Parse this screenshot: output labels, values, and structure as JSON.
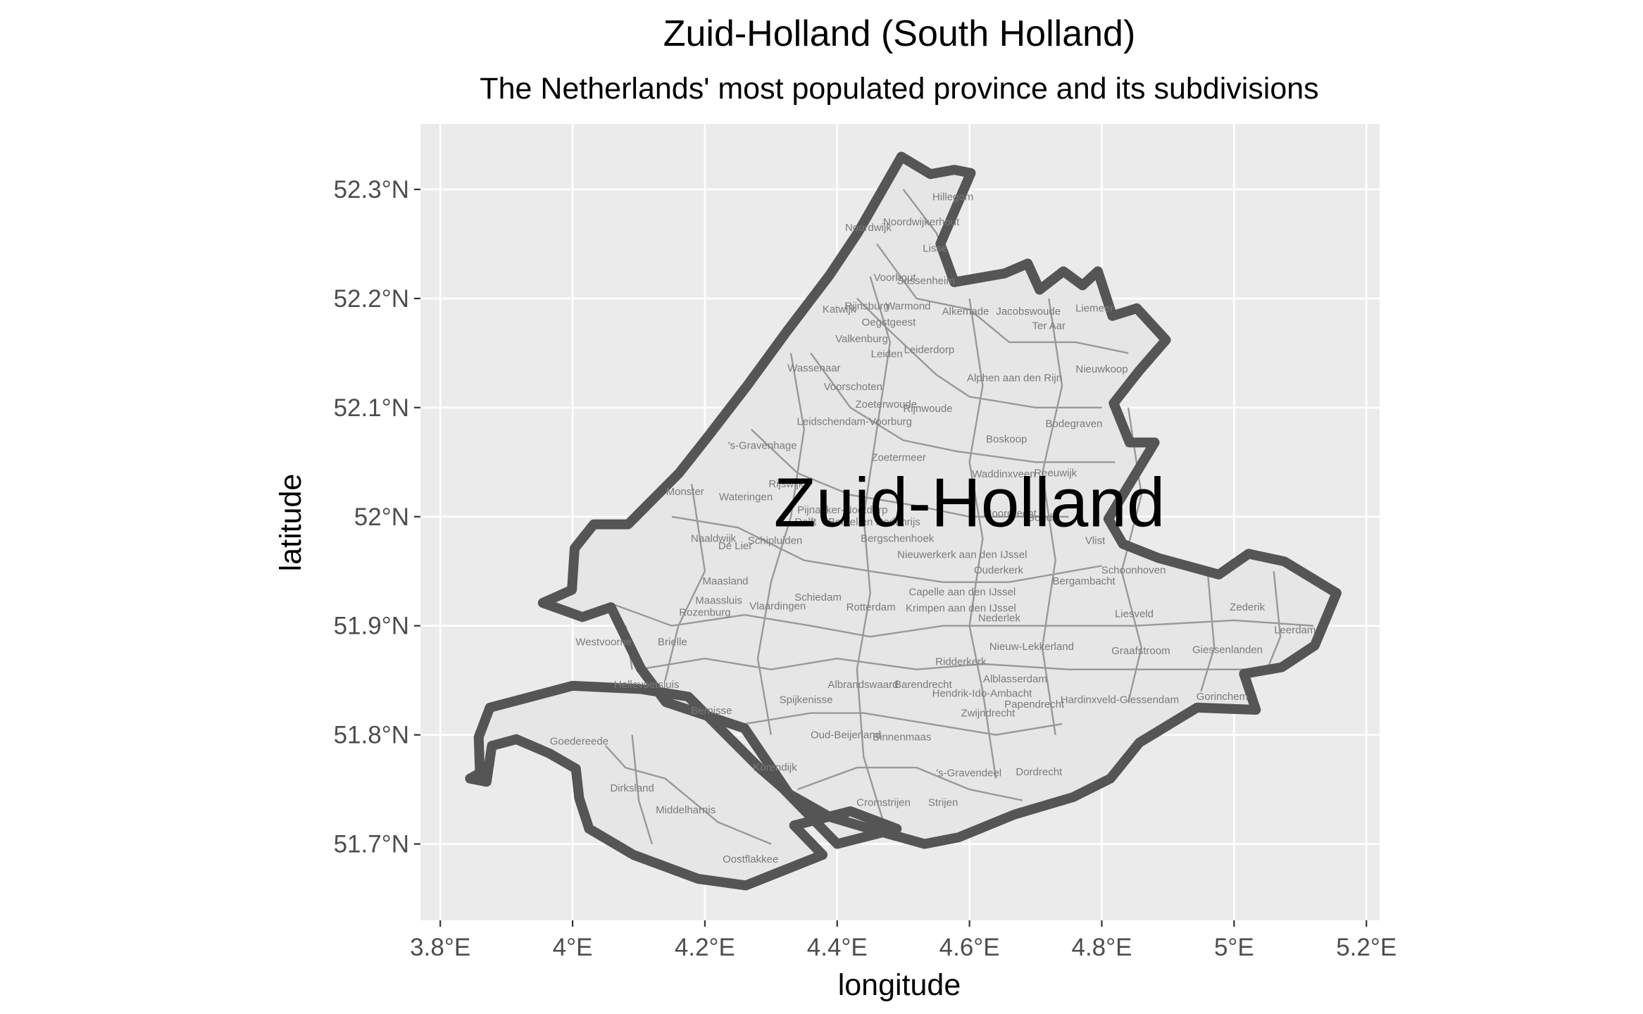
{
  "chart": {
    "title": "Zuid-Holland (South Holland)",
    "subtitle": "The Netherlands' most populated province and its subdivisions",
    "xlabel": "longitude",
    "ylabel": "latitude",
    "x_ticks": [
      "3.8°E",
      "4°E",
      "4.2°E",
      "4.4°E",
      "4.6°E",
      "4.8°E",
      "5°E",
      "5.2°E"
    ],
    "y_ticks": [
      "51.7°N",
      "51.8°N",
      "51.9°N",
      "52°N",
      "52.1°N",
      "52.2°N",
      "52.3°N"
    ],
    "province_label": "Zuid-Holland",
    "colors": {
      "panel_background": "#ebebeb",
      "grid_major": "#ffffff",
      "province_outline": "#555555",
      "municipality_fill": "#e6e6e6",
      "municipality_border": "#999999"
    }
  },
  "chart_data": {
    "type": "map",
    "xlim": [
      3.77,
      5.22
    ],
    "ylim": [
      51.63,
      52.36
    ],
    "grid": true,
    "legend": "none",
    "province": {
      "name": "Zuid-Holland",
      "lon": 4.6,
      "lat": 52.013
    },
    "outline_main": [
      [
        4.497,
        52.33
      ],
      [
        4.541,
        52.314
      ],
      [
        4.577,
        52.318
      ],
      [
        4.602,
        52.315
      ],
      [
        4.556,
        52.25
      ],
      [
        4.577,
        52.215
      ],
      [
        4.653,
        52.223
      ],
      [
        4.688,
        52.232
      ],
      [
        4.706,
        52.208
      ],
      [
        4.742,
        52.225
      ],
      [
        4.771,
        52.212
      ],
      [
        4.794,
        52.225
      ],
      [
        4.816,
        52.184
      ],
      [
        4.853,
        52.191
      ],
      [
        4.897,
        52.162
      ],
      [
        4.857,
        52.134
      ],
      [
        4.818,
        52.104
      ],
      [
        4.842,
        52.068
      ],
      [
        4.88,
        52.068
      ],
      [
        4.81,
        51.998
      ],
      [
        4.832,
        51.975
      ],
      [
        4.886,
        51.962
      ],
      [
        4.977,
        51.947
      ],
      [
        5.022,
        51.966
      ],
      [
        5.076,
        51.959
      ],
      [
        5.155,
        51.93
      ],
      [
        5.122,
        51.882
      ],
      [
        5.072,
        51.862
      ],
      [
        5.015,
        51.856
      ],
      [
        5.033,
        51.823
      ],
      [
        4.944,
        51.825
      ],
      [
        4.857,
        51.793
      ],
      [
        4.813,
        51.76
      ],
      [
        4.757,
        51.743
      ],
      [
        4.668,
        51.727
      ],
      [
        4.583,
        51.706
      ],
      [
        4.532,
        51.7
      ],
      [
        4.438,
        51.716
      ],
      [
        4.388,
        51.725
      ],
      [
        4.327,
        51.746
      ],
      [
        4.26,
        51.806
      ],
      [
        4.141,
        51.83
      ],
      [
        4.103,
        51.861
      ],
      [
        4.058,
        51.917
      ],
      [
        4.015,
        51.908
      ],
      [
        3.955,
        51.921
      ],
      [
        3.999,
        51.933
      ],
      [
        4.003,
        51.971
      ],
      [
        4.032,
        51.993
      ],
      [
        4.084,
        51.993
      ],
      [
        4.161,
        52.04
      ],
      [
        4.204,
        52.073
      ],
      [
        4.265,
        52.121
      ],
      [
        4.324,
        52.17
      ],
      [
        4.388,
        52.221
      ],
      [
        4.431,
        52.26
      ],
      [
        4.497,
        52.33
      ]
    ],
    "outline_islands": [
      [
        4.0,
        51.845
      ],
      [
        3.875,
        51.825
      ],
      [
        3.858,
        51.798
      ],
      [
        3.86,
        51.765
      ],
      [
        3.845,
        51.76
      ],
      [
        3.87,
        51.757
      ],
      [
        3.878,
        51.79
      ],
      [
        3.915,
        51.796
      ],
      [
        3.965,
        51.783
      ],
      [
        4.005,
        51.769
      ],
      [
        4.01,
        51.742
      ],
      [
        4.025,
        51.714
      ],
      [
        4.092,
        51.69
      ],
      [
        4.19,
        51.668
      ],
      [
        4.262,
        51.662
      ],
      [
        4.378,
        51.69
      ],
      [
        4.335,
        51.717
      ],
      [
        4.42,
        51.73
      ],
      [
        4.49,
        51.714
      ],
      [
        4.4,
        51.7
      ],
      [
        4.318,
        51.751
      ],
      [
        4.282,
        51.77
      ],
      [
        4.175,
        51.835
      ],
      [
        4.103,
        51.842
      ],
      [
        4.0,
        51.845
      ]
    ],
    "municipalities": [
      {
        "name": "Hillegom",
        "lon": 4.575,
        "lat": 52.29
      },
      {
        "name": "Noordwijkerhout",
        "lon": 4.527,
        "lat": 52.267
      },
      {
        "name": "Noordwijk",
        "lon": 4.447,
        "lat": 52.262
      },
      {
        "name": "Lisse",
        "lon": 4.548,
        "lat": 52.243
      },
      {
        "name": "Voorhout",
        "lon": 4.487,
        "lat": 52.216
      },
      {
        "name": "Sassenheim",
        "lon": 4.534,
        "lat": 52.213
      },
      {
        "name": "Rijnsburg",
        "lon": 4.445,
        "lat": 52.19
      },
      {
        "name": "Warmond",
        "lon": 4.507,
        "lat": 52.19
      },
      {
        "name": "Katwijk",
        "lon": 4.403,
        "lat": 52.187
      },
      {
        "name": "Alkemade",
        "lon": 4.594,
        "lat": 52.185
      },
      {
        "name": "Jacobswoude",
        "lon": 4.689,
        "lat": 52.185
      },
      {
        "name": "Liemeer",
        "lon": 4.789,
        "lat": 52.188
      },
      {
        "name": "Oegstgeest",
        "lon": 4.478,
        "lat": 52.175
      },
      {
        "name": "Ter Aar",
        "lon": 4.72,
        "lat": 52.172
      },
      {
        "name": "Valkenburg",
        "lon": 4.437,
        "lat": 52.16
      },
      {
        "name": "Leiden",
        "lon": 4.475,
        "lat": 52.146
      },
      {
        "name": "Leiderdorp",
        "lon": 4.539,
        "lat": 52.15
      },
      {
        "name": "Wassenaar",
        "lon": 4.365,
        "lat": 52.133
      },
      {
        "name": "Nieuwkoop",
        "lon": 4.8,
        "lat": 52.132
      },
      {
        "name": "Alphen aan den Rijn",
        "lon": 4.668,
        "lat": 52.124
      },
      {
        "name": "Voorschoten",
        "lon": 4.424,
        "lat": 52.116
      },
      {
        "name": "Zoeterwoude",
        "lon": 4.474,
        "lat": 52.1
      },
      {
        "name": "Rijnwoude",
        "lon": 4.537,
        "lat": 52.096
      },
      {
        "name": "Leidschendam-Voorburg",
        "lon": 4.426,
        "lat": 52.084
      },
      {
        "name": "Bodegraven",
        "lon": 4.758,
        "lat": 52.082
      },
      {
        "name": "Boskoop",
        "lon": 4.656,
        "lat": 52.068
      },
      {
        "name": "'s-Gravenhage",
        "lon": 4.287,
        "lat": 52.062
      },
      {
        "name": "Zoetermeer",
        "lon": 4.493,
        "lat": 52.051
      },
      {
        "name": "Waddinxveen",
        "lon": 4.652,
        "lat": 52.036
      },
      {
        "name": "Reeuwijk",
        "lon": 4.73,
        "lat": 52.037
      },
      {
        "name": "Rijswijk",
        "lon": 4.323,
        "lat": 52.027
      },
      {
        "name": "Wateringen",
        "lon": 4.262,
        "lat": 52.015
      },
      {
        "name": "Monster",
        "lon": 4.17,
        "lat": 52.02
      },
      {
        "name": "Pijnacker-Nootdorp",
        "lon": 4.408,
        "lat": 52.003
      },
      {
        "name": "Moordrecht",
        "lon": 4.661,
        "lat": 52.0
      },
      {
        "name": "Delft",
        "lon": 4.352,
        "lat": 51.992
      },
      {
        "name": "Berkel en Rodenrijs",
        "lon": 4.456,
        "lat": 51.992
      },
      {
        "name": "Gouda",
        "lon": 4.71,
        "lat": 51.996
      },
      {
        "name": "Bergschenhoek",
        "lon": 4.491,
        "lat": 51.977
      },
      {
        "name": "Naaldwijk",
        "lon": 4.213,
        "lat": 51.977
      },
      {
        "name": "De Lier",
        "lon": 4.246,
        "lat": 51.97
      },
      {
        "name": "Schipluiden",
        "lon": 4.306,
        "lat": 51.975
      },
      {
        "name": "Vlist",
        "lon": 4.79,
        "lat": 51.975
      },
      {
        "name": "Nieuwerkerk aan den IJssel",
        "lon": 4.589,
        "lat": 51.962
      },
      {
        "name": "Schoonhoven",
        "lon": 4.848,
        "lat": 51.948
      },
      {
        "name": "Ouderkerk",
        "lon": 4.644,
        "lat": 51.948
      },
      {
        "name": "Bergambacht",
        "lon": 4.773,
        "lat": 51.938
      },
      {
        "name": "Maasland",
        "lon": 4.231,
        "lat": 51.938
      },
      {
        "name": "Capelle aan den IJssel",
        "lon": 4.589,
        "lat": 51.928
      },
      {
        "name": "Schiedam",
        "lon": 4.371,
        "lat": 51.923
      },
      {
        "name": "Maassluis",
        "lon": 4.221,
        "lat": 51.92
      },
      {
        "name": "Vlaardingen",
        "lon": 4.31,
        "lat": 51.915
      },
      {
        "name": "Rotterdam",
        "lon": 4.451,
        "lat": 51.914
      },
      {
        "name": "Krimpen aan den IJssel",
        "lon": 4.587,
        "lat": 51.913
      },
      {
        "name": "Zederik",
        "lon": 5.02,
        "lat": 51.914
      },
      {
        "name": "Rozenburg",
        "lon": 4.2,
        "lat": 51.909
      },
      {
        "name": "Liesveld",
        "lon": 4.849,
        "lat": 51.908
      },
      {
        "name": "Nederlek",
        "lon": 4.645,
        "lat": 51.904
      },
      {
        "name": "Leerdam",
        "lon": 5.092,
        "lat": 51.893
      },
      {
        "name": "Westvoorne",
        "lon": 4.047,
        "lat": 51.882
      },
      {
        "name": "Brielle",
        "lon": 4.151,
        "lat": 51.882
      },
      {
        "name": "Nieuw-Lekkerland",
        "lon": 4.694,
        "lat": 51.878
      },
      {
        "name": "Graafstroom",
        "lon": 4.859,
        "lat": 51.874
      },
      {
        "name": "Giessenlanden",
        "lon": 4.99,
        "lat": 51.875
      },
      {
        "name": "Ridderkerk",
        "lon": 4.587,
        "lat": 51.864
      },
      {
        "name": "Alblasserdam",
        "lon": 4.669,
        "lat": 51.848
      },
      {
        "name": "Hellevoetsluis",
        "lon": 4.112,
        "lat": 51.843
      },
      {
        "name": "Albrandswaard",
        "lon": 4.439,
        "lat": 51.843
      },
      {
        "name": "Barendrecht",
        "lon": 4.53,
        "lat": 51.843
      },
      {
        "name": "Hendrik-Ido-Ambacht",
        "lon": 4.619,
        "lat": 51.835
      },
      {
        "name": "Hardinxveld-Giessendam",
        "lon": 4.827,
        "lat": 51.829
      },
      {
        "name": "Gorinchem",
        "lon": 4.982,
        "lat": 51.832
      },
      {
        "name": "Papendrecht",
        "lon": 4.698,
        "lat": 51.825
      },
      {
        "name": "Spijkenisse",
        "lon": 4.353,
        "lat": 51.829
      },
      {
        "name": "Bernisse",
        "lon": 4.21,
        "lat": 51.819
      },
      {
        "name": "Zwijndrecht",
        "lon": 4.628,
        "lat": 51.817
      },
      {
        "name": "Goedereede",
        "lon": 4.01,
        "lat": 51.791
      },
      {
        "name": "Oud-Beijerland",
        "lon": 4.413,
        "lat": 51.797
      },
      {
        "name": "Binnenmaas",
        "lon": 4.498,
        "lat": 51.795
      },
      {
        "name": "Korendijk",
        "lon": 4.306,
        "lat": 51.767
      },
      {
        "name": "'s-Gravendeel",
        "lon": 4.599,
        "lat": 51.762
      },
      {
        "name": "Dordrecht",
        "lon": 4.705,
        "lat": 51.763
      },
      {
        "name": "Dirksland",
        "lon": 4.09,
        "lat": 51.748
      },
      {
        "name": "Cromstrijen",
        "lon": 4.47,
        "lat": 51.735
      },
      {
        "name": "Strijen",
        "lon": 4.56,
        "lat": 51.735
      },
      {
        "name": "Middelharnis",
        "lon": 4.171,
        "lat": 51.728
      },
      {
        "name": "Oostflakkee",
        "lon": 4.269,
        "lat": 51.683
      }
    ]
  }
}
